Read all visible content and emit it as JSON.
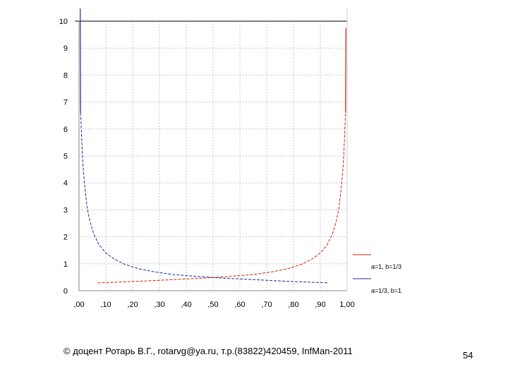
{
  "chart_data": {
    "type": "line",
    "xlim": [
      0,
      1
    ],
    "ylim": [
      0,
      10
    ],
    "x_tick_labels": [
      ",00",
      ",10",
      ",20",
      ",30",
      ",40",
      ",50",
      ",60",
      ",70",
      ",80",
      ",90",
      "1,00"
    ],
    "y_tick_labels": [
      "0",
      "1",
      "2",
      "3",
      "4",
      "5",
      "6",
      "7",
      "8",
      "9",
      "10"
    ],
    "grid": true,
    "legend_placement": "right",
    "series": [
      {
        "name": "a=1, b=1/3",
        "color": "#cc2200",
        "x": [
          0.07,
          0.15,
          0.25,
          0.35,
          0.45,
          0.55,
          0.65,
          0.72,
          0.78,
          0.83,
          0.87,
          0.9,
          0.925,
          0.945,
          0.96,
          0.97,
          0.978,
          0.985,
          0.99,
          0.994
        ],
        "y": [
          0.29,
          0.32,
          0.36,
          0.41,
          0.46,
          0.52,
          0.6,
          0.7,
          0.82,
          0.98,
          1.18,
          1.4,
          1.7,
          2.1,
          2.6,
          3.1,
          3.8,
          4.6,
          5.6,
          6.6
        ]
      },
      {
        "name": "a=1/3, b=1",
        "color": "#1a2d99",
        "x": [
          0.006,
          0.01,
          0.015,
          0.022,
          0.03,
          0.04,
          0.055,
          0.075,
          0.1,
          0.13,
          0.17,
          0.22,
          0.28,
          0.35,
          0.45,
          0.55,
          0.65,
          0.75,
          0.85,
          0.93
        ],
        "y": [
          6.6,
          5.6,
          4.6,
          3.8,
          3.1,
          2.6,
          2.1,
          1.7,
          1.4,
          1.18,
          0.98,
          0.82,
          0.7,
          0.6,
          0.52,
          0.46,
          0.41,
          0.36,
          0.32,
          0.29
        ]
      }
    ]
  },
  "footer": {
    "copyright": "© доцент Ротарь В.Г., rotarvg@ya.ru, т.р.(83822)420459, InfMan-2011",
    "page_number": "54"
  }
}
